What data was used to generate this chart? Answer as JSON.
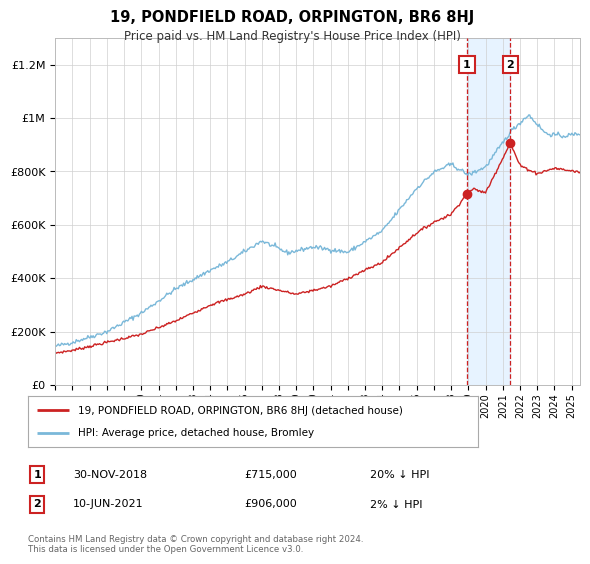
{
  "title": "19, PONDFIELD ROAD, ORPINGTON, BR6 8HJ",
  "subtitle": "Price paid vs. HM Land Registry's House Price Index (HPI)",
  "ylim": [
    0,
    1300000
  ],
  "yticks": [
    0,
    200000,
    400000,
    600000,
    800000,
    1000000,
    1200000
  ],
  "ytick_labels": [
    "£0",
    "£200K",
    "£400K",
    "£600K",
    "£800K",
    "£1M",
    "£1.2M"
  ],
  "hpi_color": "#7ab8d9",
  "price_color": "#cc2222",
  "shade_color": "#ddeeff",
  "event1": {
    "date_label": "30-NOV-2018",
    "price": 715000,
    "hpi_pct": "20% ↓ HPI",
    "x_year": 2018.92
  },
  "event2": {
    "date_label": "10-JUN-2021",
    "price": 906000,
    "hpi_pct": "2% ↓ HPI",
    "x_year": 2021.44
  },
  "legend_entries": [
    "19, PONDFIELD ROAD, ORPINGTON, BR6 8HJ (detached house)",
    "HPI: Average price, detached house, Bromley"
  ],
  "footnote": "Contains HM Land Registry data © Crown copyright and database right 2024.\nThis data is licensed under the Open Government Licence v3.0.",
  "background_color": "#ffffff",
  "xlim_start": 1995,
  "xlim_end": 2025.5
}
